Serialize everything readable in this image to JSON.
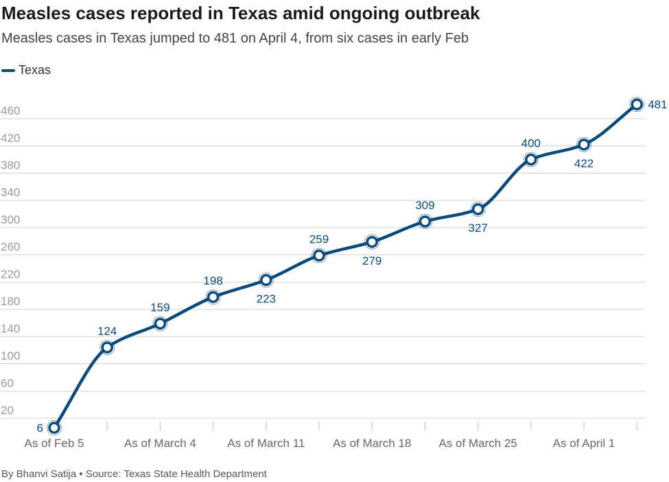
{
  "chart_data": {
    "type": "line",
    "title": "Measles cases reported in Texas amid ongoing outbreak",
    "subtitle": "Measles cases in Texas jumped to 481 on April 4, from six cases in early Feb",
    "xlabel": "",
    "ylabel": "",
    "ylim": [
      0,
      480
    ],
    "yticks": [
      20,
      60,
      100,
      140,
      180,
      220,
      260,
      300,
      340,
      380,
      420,
      460
    ],
    "grid": true,
    "legend_position": "top-left",
    "categories": [
      "As of Feb 5",
      "",
      "As of March 4",
      "",
      "As of March 11",
      "",
      "As of March 18",
      "",
      "As of March 25",
      "",
      "As of April 1",
      ""
    ],
    "x_tick_labels": [
      "As of Feb 5",
      "As of March 4",
      "As of March 11",
      "As of March 18",
      "As of March 25",
      "As of April 1"
    ],
    "series": [
      {
        "name": "Texas",
        "color": "#0a4a7a",
        "values": [
          6,
          124,
          159,
          198,
          223,
          259,
          279,
          309,
          327,
          400,
          422,
          481
        ],
        "label_positions": [
          "left",
          "above",
          "above",
          "above",
          "below",
          "above",
          "below",
          "above",
          "below",
          "above",
          "below",
          "right"
        ]
      }
    ]
  },
  "byline": "By Bhanvi Satija • Source: Texas State Health Department"
}
